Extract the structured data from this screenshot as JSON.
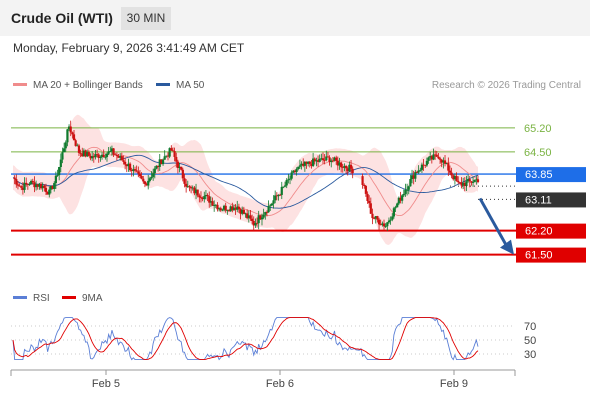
{
  "header": {
    "instrument": "Crude Oil (WTI)",
    "timeframe": "30 MIN",
    "datetime": "Monday, February 9, 2026 3:41:49 AM CET"
  },
  "legend": {
    "ma20_bb": {
      "label": "MA 20 + Bollinger Bands",
      "color": "#f08c8c"
    },
    "ma50": {
      "label": "MA 50",
      "color": "#2a5a9e"
    },
    "credit": "Research © 2026 Trading Central"
  },
  "rsi_legend": {
    "rsi": {
      "label": "RSI",
      "color": "#5b7fd6"
    },
    "ma9": {
      "label": "9MA",
      "color": "#e00000"
    }
  },
  "chart_data": [
    {
      "type": "candlestick",
      "ylim": [
        60.7,
        66.1
      ],
      "levels": [
        {
          "value": 65.2,
          "label": "65.20",
          "kind": "resistance",
          "color": "#7ab343"
        },
        {
          "value": 64.5,
          "label": "64.50",
          "kind": "resistance",
          "color": "#7ab343"
        },
        {
          "value": 63.85,
          "label": "63.85",
          "kind": "pivot",
          "color": "#1e6ee8"
        },
        {
          "value": 62.2,
          "label": "62.20",
          "kind": "support",
          "color": "#e00000"
        },
        {
          "value": 61.5,
          "label": "61.50",
          "kind": "support",
          "color": "#e00000"
        }
      ],
      "last_price": {
        "value": 63.11,
        "label": "63.11",
        "color": "#333333"
      },
      "x_ticks": [
        "Feb 5",
        "Feb 6",
        "Feb 9"
      ],
      "up_color": "#0f7a2e",
      "down_color": "#cc1111",
      "bands_color": "#fde2e2",
      "projection": {
        "from": 63.11,
        "to": 61.5,
        "color": "#2a5a9e"
      }
    },
    {
      "type": "line",
      "series": [
        {
          "name": "RSI"
        },
        {
          "name": "9MA"
        }
      ],
      "y_ticks": [
        30,
        50,
        70
      ],
      "ylim": [
        10,
        90
      ]
    }
  ]
}
